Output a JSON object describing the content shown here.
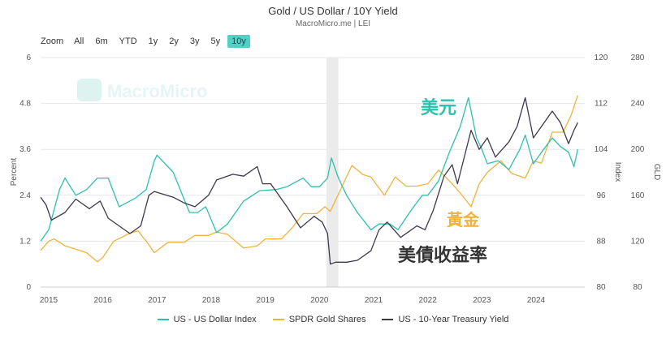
{
  "title": "Gold / US Dollar / 10Y Yield",
  "subtitle": "MacroMicro.me | LEI",
  "watermark": "MacroMicro",
  "zoom": {
    "label": "Zoom",
    "buttons": [
      "All",
      "6m",
      "YTD",
      "1y",
      "2y",
      "3y",
      "5y",
      "10y"
    ],
    "active": "10y"
  },
  "annotations": {
    "dollar": "美元",
    "gold": "黃金",
    "yield": "美債收益率"
  },
  "colors": {
    "dollar": "#2ebfae",
    "gold": "#f0b23c",
    "yield": "#3a3a4a"
  },
  "chart_data": {
    "type": "line",
    "x_range": [
      2014.85,
      2024.9
    ],
    "x_ticks": [
      "2015",
      "2016",
      "2017",
      "2018",
      "2019",
      "2020",
      "2021",
      "2022",
      "2023",
      "2024"
    ],
    "shaded_region": [
      2020.13,
      2020.35
    ],
    "axes": {
      "percent": {
        "label": "Percent",
        "range": [
          0,
          6
        ],
        "ticks": [
          "0",
          "1.2",
          "2.4",
          "3.6",
          "4.8",
          "6"
        ]
      },
      "index": {
        "label": "Index",
        "range": [
          80,
          120
        ],
        "ticks": [
          "80",
          "88",
          "96",
          "104",
          "112",
          "120"
        ]
      },
      "gld": {
        "label": "GLD",
        "range": [
          80,
          280
        ],
        "ticks": [
          "80",
          "120",
          "160",
          "200",
          "240",
          "280"
        ]
      }
    },
    "series": [
      {
        "name": "US - US Dollar Index",
        "axis": "index",
        "points": [
          [
            2014.85,
            88
          ],
          [
            2015.0,
            90
          ],
          [
            2015.2,
            97
          ],
          [
            2015.3,
            99
          ],
          [
            2015.5,
            96
          ],
          [
            2015.7,
            97
          ],
          [
            2015.9,
            99
          ],
          [
            2016.1,
            99
          ],
          [
            2016.3,
            94
          ],
          [
            2016.6,
            95.5
          ],
          [
            2016.8,
            97
          ],
          [
            2016.95,
            102
          ],
          [
            2017.0,
            103
          ],
          [
            2017.3,
            100
          ],
          [
            2017.6,
            93
          ],
          [
            2017.75,
            93
          ],
          [
            2017.9,
            94
          ],
          [
            2018.1,
            89.5
          ],
          [
            2018.3,
            91
          ],
          [
            2018.6,
            95
          ],
          [
            2018.9,
            96.8
          ],
          [
            2019.2,
            97
          ],
          [
            2019.4,
            97.5
          ],
          [
            2019.7,
            99
          ],
          [
            2019.85,
            97.5
          ],
          [
            2020.0,
            97.5
          ],
          [
            2020.15,
            99
          ],
          [
            2020.22,
            102.5
          ],
          [
            2020.35,
            99
          ],
          [
            2020.5,
            96
          ],
          [
            2020.7,
            93
          ],
          [
            2020.95,
            90
          ],
          [
            2021.1,
            91
          ],
          [
            2021.3,
            91
          ],
          [
            2021.45,
            90
          ],
          [
            2021.7,
            93.5
          ],
          [
            2021.9,
            96
          ],
          [
            2022.0,
            96
          ],
          [
            2022.2,
            98.5
          ],
          [
            2022.4,
            103.5
          ],
          [
            2022.6,
            108
          ],
          [
            2022.75,
            113
          ],
          [
            2022.9,
            106
          ],
          [
            2023.0,
            104
          ],
          [
            2023.1,
            101.5
          ],
          [
            2023.3,
            102
          ],
          [
            2023.5,
            100.5
          ],
          [
            2023.7,
            104
          ],
          [
            2023.8,
            106.5
          ],
          [
            2023.95,
            101.5
          ],
          [
            2024.1,
            103.5
          ],
          [
            2024.3,
            106
          ],
          [
            2024.45,
            104.5
          ],
          [
            2024.6,
            103.5
          ],
          [
            2024.7,
            101
          ],
          [
            2024.77,
            104
          ]
        ]
      },
      {
        "name": "SPDR Gold Shares",
        "axis": "gld",
        "points": [
          [
            2014.85,
            112
          ],
          [
            2015.0,
            120
          ],
          [
            2015.1,
            122
          ],
          [
            2015.3,
            116
          ],
          [
            2015.5,
            113
          ],
          [
            2015.7,
            110
          ],
          [
            2015.9,
            102
          ],
          [
            2016.0,
            106
          ],
          [
            2016.2,
            120
          ],
          [
            2016.5,
            127
          ],
          [
            2016.65,
            129
          ],
          [
            2016.8,
            120
          ],
          [
            2016.95,
            110
          ],
          [
            2017.2,
            119
          ],
          [
            2017.5,
            119
          ],
          [
            2017.7,
            125
          ],
          [
            2017.95,
            125
          ],
          [
            2018.1,
            128
          ],
          [
            2018.3,
            126
          ],
          [
            2018.6,
            114
          ],
          [
            2018.85,
            116
          ],
          [
            2019.0,
            122
          ],
          [
            2019.3,
            122
          ],
          [
            2019.5,
            132
          ],
          [
            2019.7,
            144
          ],
          [
            2019.95,
            144
          ],
          [
            2020.1,
            150
          ],
          [
            2020.2,
            146
          ],
          [
            2020.35,
            161
          ],
          [
            2020.6,
            186
          ],
          [
            2020.8,
            178
          ],
          [
            2020.95,
            176
          ],
          [
            2021.2,
            160
          ],
          [
            2021.4,
            176
          ],
          [
            2021.6,
            168
          ],
          [
            2021.8,
            168
          ],
          [
            2022.0,
            170
          ],
          [
            2022.2,
            182
          ],
          [
            2022.45,
            170
          ],
          [
            2022.6,
            162
          ],
          [
            2022.8,
            150
          ],
          [
            2022.95,
            170
          ],
          [
            2023.1,
            180
          ],
          [
            2023.35,
            190
          ],
          [
            2023.55,
            179
          ],
          [
            2023.8,
            175
          ],
          [
            2023.95,
            190
          ],
          [
            2024.1,
            188
          ],
          [
            2024.3,
            215
          ],
          [
            2024.5,
            215
          ],
          [
            2024.65,
            230
          ],
          [
            2024.77,
            247
          ]
        ]
      },
      {
        "name": "US - 10-Year Treasury Yield",
        "axis": "percent",
        "points": [
          [
            2014.85,
            2.35
          ],
          [
            2014.95,
            2.15
          ],
          [
            2015.05,
            1.75
          ],
          [
            2015.3,
            1.95
          ],
          [
            2015.5,
            2.3
          ],
          [
            2015.75,
            2.05
          ],
          [
            2015.95,
            2.25
          ],
          [
            2016.1,
            1.8
          ],
          [
            2016.5,
            1.4
          ],
          [
            2016.7,
            1.6
          ],
          [
            2016.85,
            2.4
          ],
          [
            2016.95,
            2.5
          ],
          [
            2017.3,
            2.35
          ],
          [
            2017.5,
            2.2
          ],
          [
            2017.7,
            2.1
          ],
          [
            2017.95,
            2.4
          ],
          [
            2018.1,
            2.8
          ],
          [
            2018.4,
            2.95
          ],
          [
            2018.6,
            2.9
          ],
          [
            2018.85,
            3.15
          ],
          [
            2018.95,
            2.7
          ],
          [
            2019.1,
            2.7
          ],
          [
            2019.4,
            2.1
          ],
          [
            2019.65,
            1.55
          ],
          [
            2019.9,
            1.85
          ],
          [
            2020.05,
            1.7
          ],
          [
            2020.15,
            1.4
          ],
          [
            2020.2,
            0.6
          ],
          [
            2020.3,
            0.65
          ],
          [
            2020.5,
            0.65
          ],
          [
            2020.7,
            0.7
          ],
          [
            2020.95,
            0.95
          ],
          [
            2021.1,
            1.5
          ],
          [
            2021.25,
            1.7
          ],
          [
            2021.5,
            1.3
          ],
          [
            2021.8,
            1.6
          ],
          [
            2021.95,
            1.5
          ],
          [
            2022.1,
            2.0
          ],
          [
            2022.3,
            2.9
          ],
          [
            2022.45,
            3.2
          ],
          [
            2022.55,
            2.7
          ],
          [
            2022.8,
            4.1
          ],
          [
            2022.95,
            3.6
          ],
          [
            2023.1,
            3.9
          ],
          [
            2023.25,
            3.4
          ],
          [
            2023.5,
            3.8
          ],
          [
            2023.65,
            4.2
          ],
          [
            2023.8,
            4.95
          ],
          [
            2023.95,
            3.9
          ],
          [
            2024.1,
            4.2
          ],
          [
            2024.3,
            4.6
          ],
          [
            2024.45,
            4.3
          ],
          [
            2024.6,
            3.75
          ],
          [
            2024.7,
            4.1
          ],
          [
            2024.77,
            4.3
          ]
        ]
      }
    ]
  }
}
